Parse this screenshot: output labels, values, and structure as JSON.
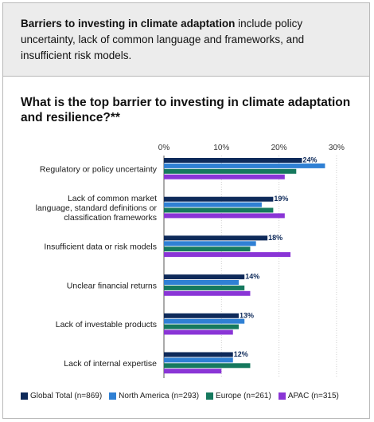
{
  "banner": {
    "lead": "Barriers to investing in climate adaptation",
    "rest": " include policy uncertainty, lack of common language and frameworks, and insufficient risk models."
  },
  "chart_data": {
    "type": "bar",
    "orientation": "horizontal",
    "title": "What is the top barrier to investing in climate adaptation and resilience?**",
    "xlim": [
      0,
      30
    ],
    "x_ticks": [
      "0%",
      "10%",
      "20%",
      "30%"
    ],
    "grid": true,
    "legend_position": "bottom",
    "categories": [
      [
        "Regulatory or policy uncertainty"
      ],
      [
        "Lack of common market",
        "language, standard definitions or",
        "classification frameworks"
      ],
      [
        "Insufficient data or risk models"
      ],
      [
        "Unclear financial returns"
      ],
      [
        "Lack of investable products"
      ],
      [
        "Lack of internal expertise"
      ]
    ],
    "series": [
      {
        "name": "Global Total (n=869)",
        "color": "#0e2a5a",
        "values": [
          24,
          19,
          18,
          14,
          13,
          12
        ],
        "labels": [
          "24%",
          "19%",
          "18%",
          "14%",
          "13%",
          "12%"
        ]
      },
      {
        "name": "North America (n=293)",
        "color": "#2f80d4",
        "values": [
          28,
          17,
          16,
          13,
          14,
          12
        ]
      },
      {
        "name": "Europe (n=261)",
        "color": "#16795e",
        "values": [
          23,
          19,
          15,
          14,
          13,
          15
        ]
      },
      {
        "name": "APAC (n=315)",
        "color": "#8a35d6",
        "values": [
          21,
          21,
          22,
          15,
          12,
          10
        ]
      }
    ]
  }
}
